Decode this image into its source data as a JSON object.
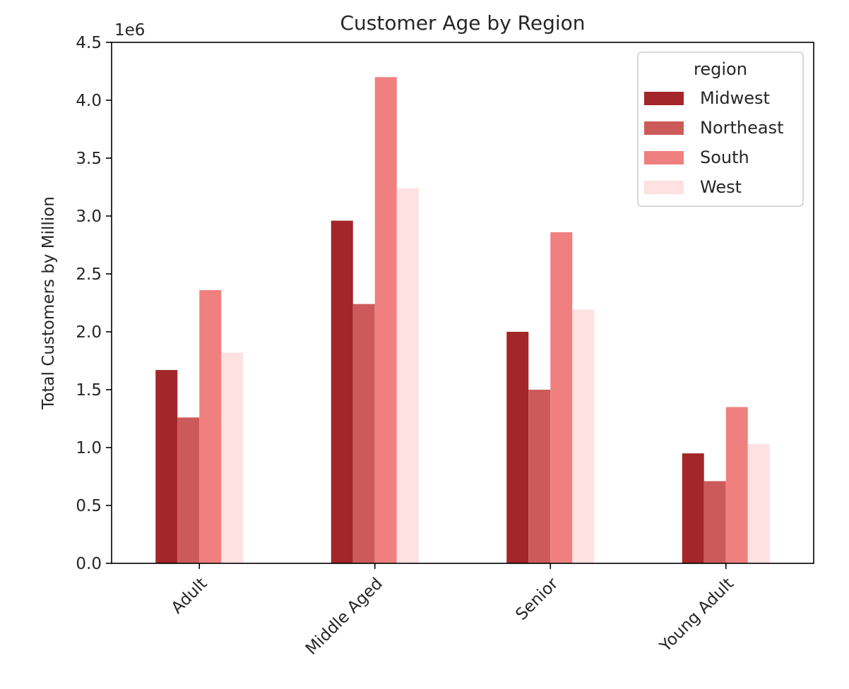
{
  "chart_data": {
    "type": "bar",
    "title": "Customer Age by Region",
    "xlabel": "",
    "ylabel": "Total Customers by Million",
    "y_offset_text": "1e6",
    "categories": [
      "Adult",
      "Middle Aged",
      "Senior",
      "Young Adult"
    ],
    "series": [
      {
        "name": "Midwest",
        "color": "#a3262a",
        "values": [
          1670000,
          2960000,
          2000000,
          950000
        ]
      },
      {
        "name": "Northeast",
        "color": "#cd5a5a",
        "values": [
          1260000,
          2240000,
          1500000,
          710000
        ]
      },
      {
        "name": "South",
        "color": "#f08080",
        "values": [
          2360000,
          4200000,
          2860000,
          1350000
        ]
      },
      {
        "name": "West",
        "color": "#ffe1e1",
        "values": [
          1820000,
          3240000,
          2190000,
          1030000
        ]
      }
    ],
    "ylim": [
      0,
      4500000
    ],
    "yticks": [
      0,
      500000,
      1000000,
      1500000,
      2000000,
      2500000,
      3000000,
      3500000,
      4000000,
      4500000
    ],
    "ytick_labels": [
      "0.0",
      "0.5",
      "1.0",
      "1.5",
      "2.0",
      "2.5",
      "3.0",
      "3.5",
      "4.0",
      "4.5"
    ],
    "grid": false,
    "legend": {
      "title": "region",
      "placement": "top-right"
    }
  }
}
